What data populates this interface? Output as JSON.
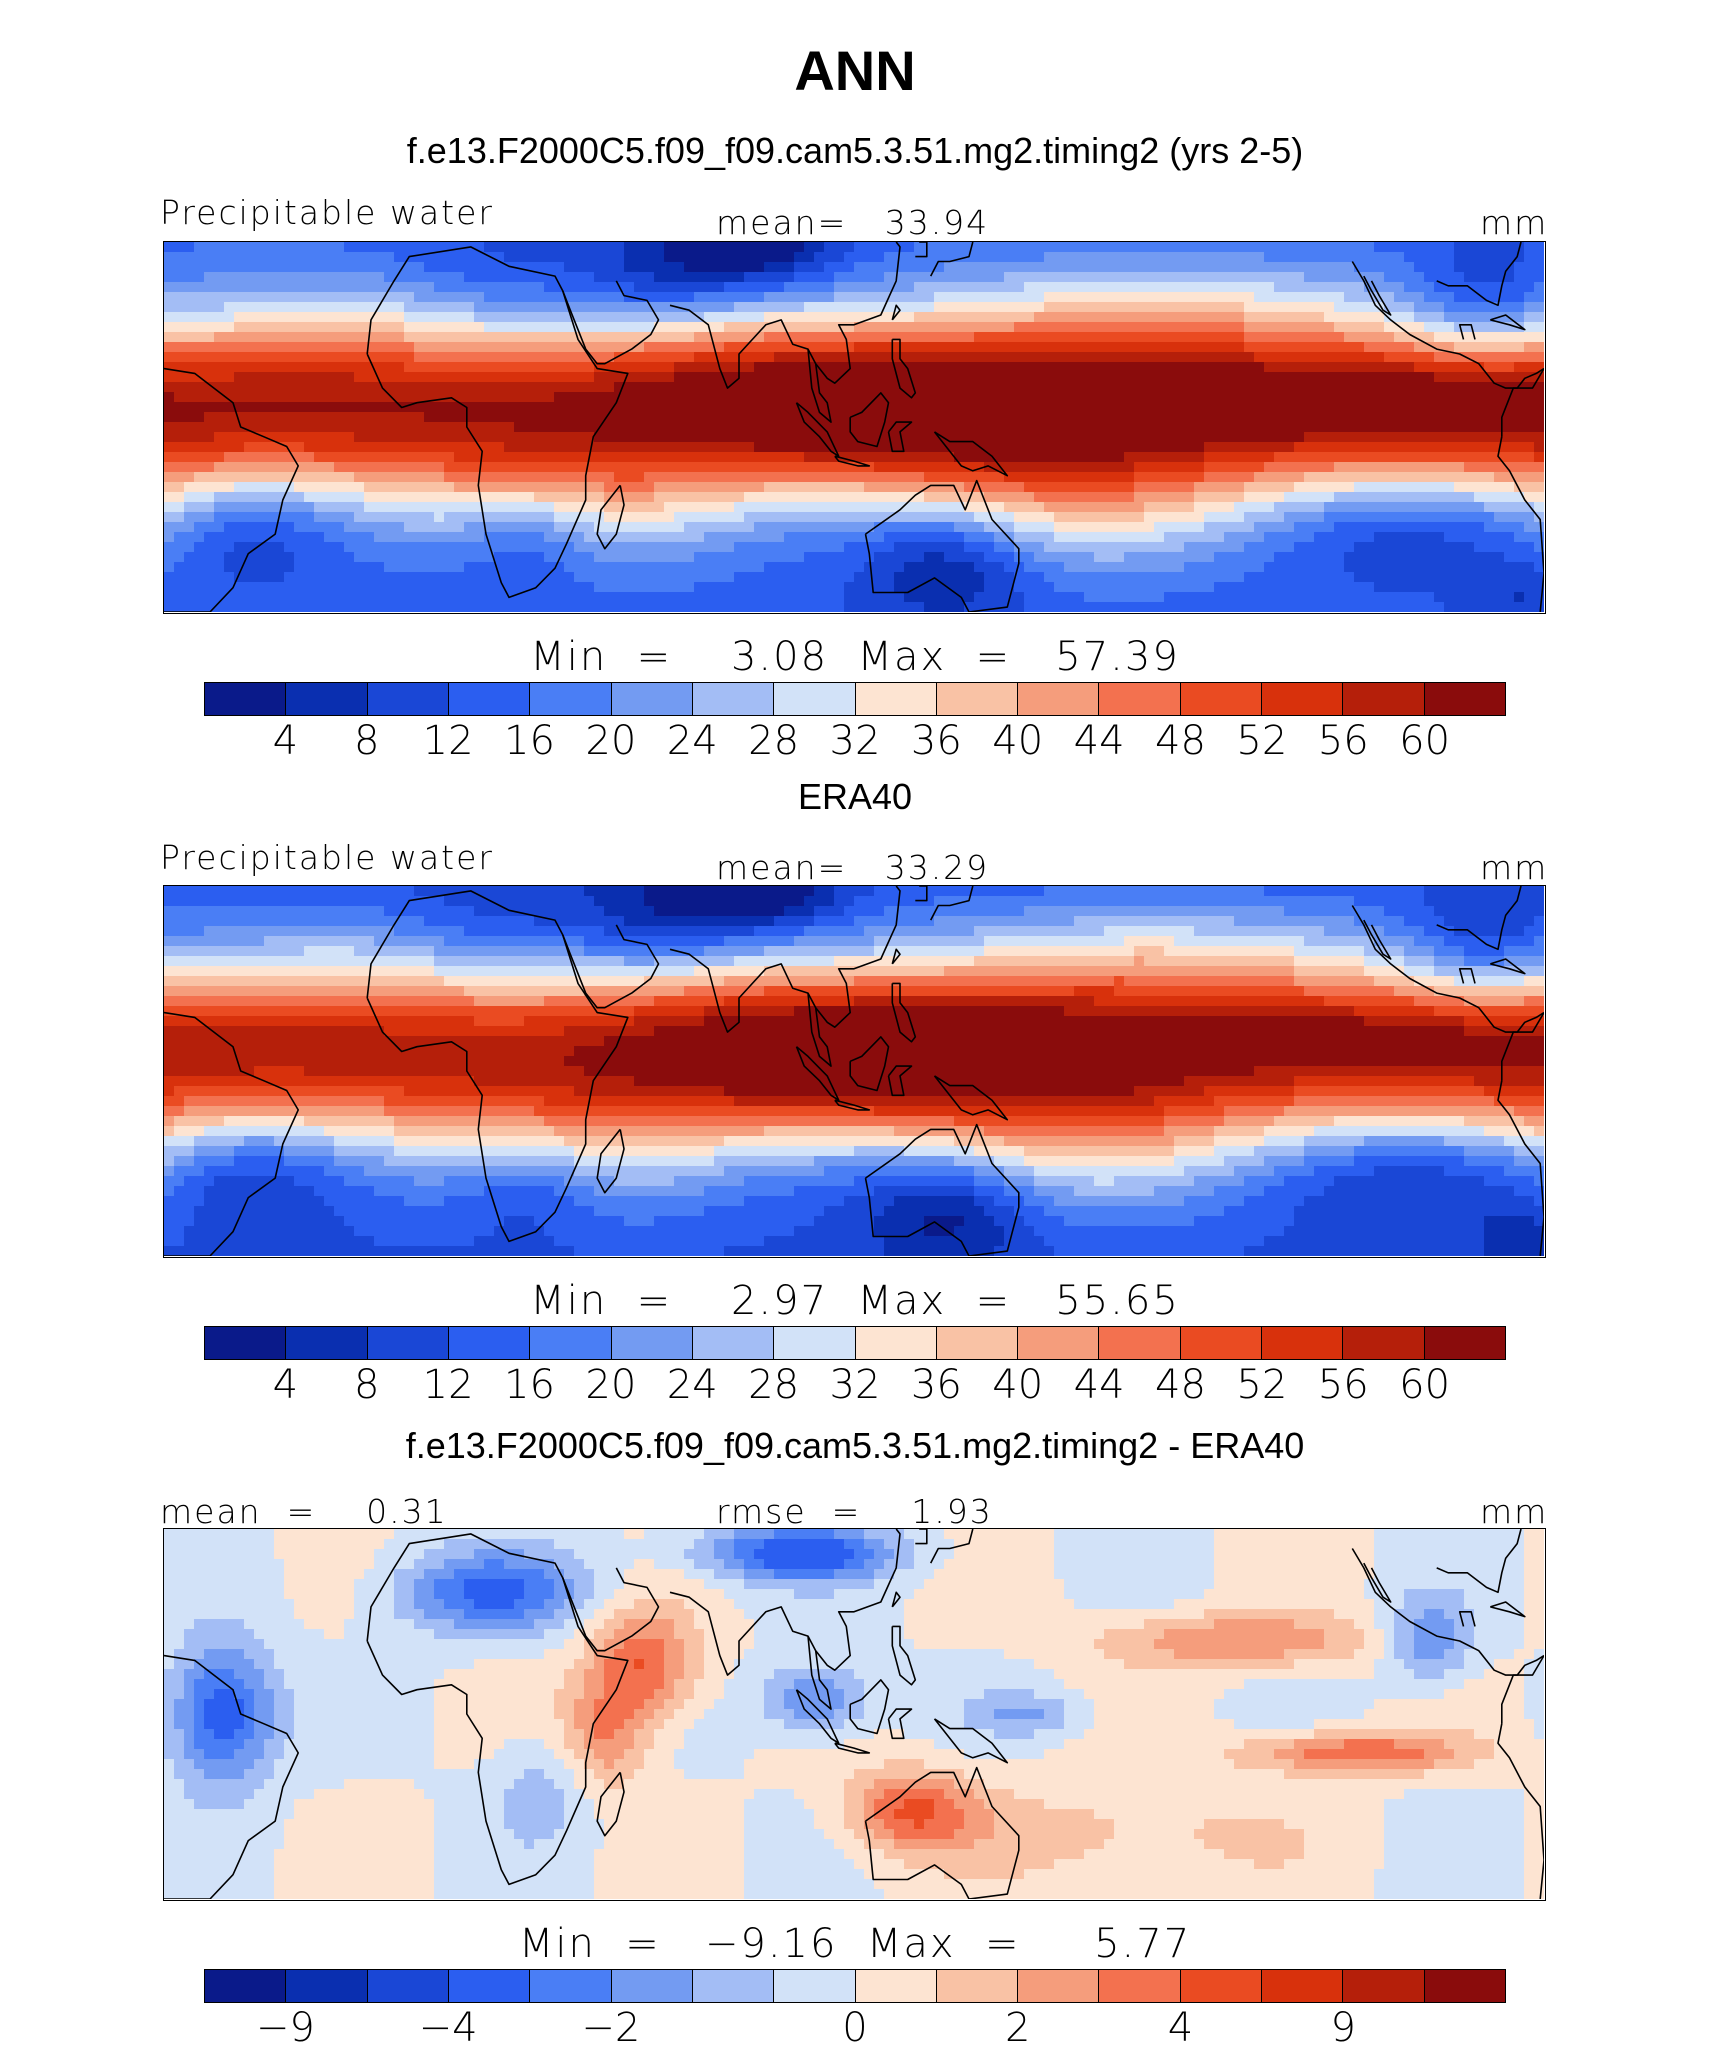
{
  "title": "ANN",
  "scales": {
    "abs": {
      "colors": [
        "#0a1a8a",
        "#0a2fb0",
        "#1a47d6",
        "#2b5ef0",
        "#4a7ef5",
        "#739bf2",
        "#a3bdf5",
        "#d2e2f8",
        "#fde4d2",
        "#f9c2a5",
        "#f59d7c",
        "#f3714f",
        "#ea4b22",
        "#d8310c",
        "#b51f0a",
        "#8a0c0c"
      ],
      "ticks": [
        "4",
        "8",
        "12",
        "16",
        "20",
        "24",
        "28",
        "32",
        "36",
        "40",
        "44",
        "48",
        "52",
        "56",
        "60"
      ]
    },
    "diff": {
      "colors": [
        "#0a1a8a",
        "#0a2fb0",
        "#1a47d6",
        "#2b5ef0",
        "#4a7ef5",
        "#739bf2",
        "#a3bdf5",
        "#d2e2f8",
        "#fde4d2",
        "#f9c2a5",
        "#f59d7c",
        "#f3714f",
        "#ea4b22",
        "#d8310c",
        "#b51f0a",
        "#8a0c0c"
      ],
      "ticks": [
        {
          "label": "−9",
          "index": 1
        },
        {
          "label": "−4",
          "index": 3
        },
        {
          "label": "−2",
          "index": 5
        },
        {
          "label": "0",
          "index": 8
        },
        {
          "label": "2",
          "index": 10
        },
        {
          "label": "4",
          "index": 12
        },
        {
          "label": "9",
          "index": 14
        }
      ]
    }
  },
  "panels": [
    {
      "title": "f.e13.F2000C5.f09_f09.cam5.3.51.mg2.timing2 (yrs 2-5)",
      "left_label": "Precipitable water",
      "center_label": "mean=   33.94",
      "right_label": "mm",
      "minmax": "Min  =    3.08  Max  =   57.39",
      "field": "model"
    },
    {
      "title": "ERA40",
      "left_label": "Precipitable water",
      "center_label": "mean=   33.29",
      "right_label": "mm",
      "minmax": "Min  =    2.97  Max  =   55.65",
      "field": "obs"
    },
    {
      "title": "f.e13.F2000C5.f09_f09.cam5.3.51.mg2.timing2 - ERA40",
      "left_label": "mean  =    0.31",
      "center_label": "rmse  =    1.93",
      "right_label": "mm",
      "minmax": "Min  =   −9.16  Max  =     5.77",
      "field": "diff"
    }
  ]
}
